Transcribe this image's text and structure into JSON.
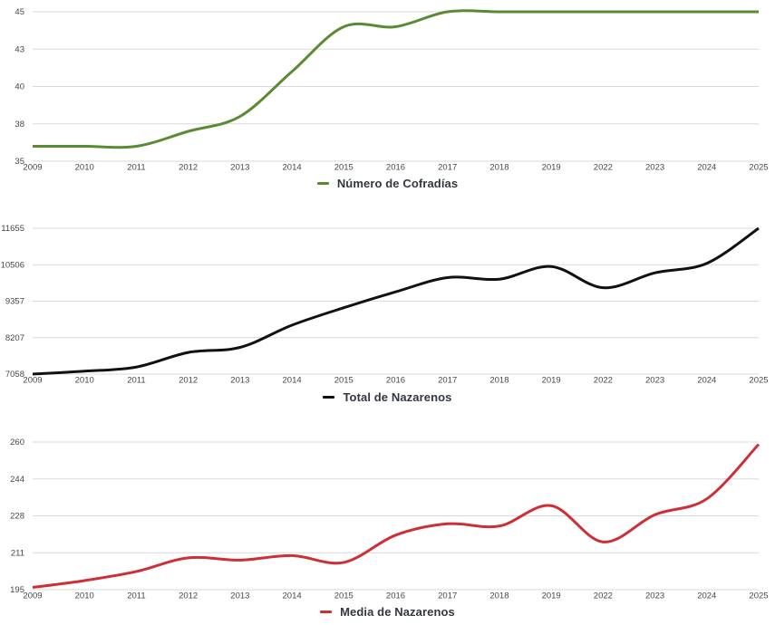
{
  "page": {
    "background": "#ffffff"
  },
  "colors": {
    "grid": "#d9d9d9",
    "tick_label": "#44474e",
    "legend_text": "#333740"
  },
  "chart_data": [
    {
      "type": "line",
      "title": "Número de Cofradías",
      "line_color": "#5a8b32",
      "smooth": true,
      "grid": true,
      "legend_position": "bottom",
      "categories": [
        "2009",
        "2010",
        "2011",
        "2012",
        "2013",
        "2014",
        "2015",
        "2016",
        "2017",
        "2018",
        "2019",
        "2022",
        "2023",
        "2024",
        "2025"
      ],
      "values": [
        36,
        36,
        36,
        37,
        38,
        41,
        44,
        44,
        45,
        45,
        45,
        45,
        45,
        45,
        45
      ],
      "ylim": [
        35,
        45
      ],
      "ytick_labels": [
        "45",
        "43",
        "40",
        "38",
        "35"
      ],
      "xlabel": "",
      "ylabel": ""
    },
    {
      "type": "line",
      "title": "Total de Nazarenos",
      "line_color": "#111111",
      "smooth": true,
      "grid": true,
      "legend_position": "bottom",
      "categories": [
        "2009",
        "2010",
        "2011",
        "2012",
        "2013",
        "2014",
        "2015",
        "2016",
        "2017",
        "2018",
        "2019",
        "2022",
        "2023",
        "2024",
        "2025"
      ],
      "values": [
        7058,
        7150,
        7280,
        7740,
        7900,
        8600,
        9150,
        9650,
        10100,
        10050,
        10450,
        9780,
        10250,
        10550,
        11655
      ],
      "ylim": [
        7058,
        11655
      ],
      "ytick_labels": [
        "11655",
        "10506",
        "9357",
        "8207",
        "7058"
      ],
      "xlabel": "",
      "ylabel": ""
    },
    {
      "type": "line",
      "title": "Media de Nazarenos",
      "line_color": "#ce2f36",
      "smooth": true,
      "grid": true,
      "legend_position": "bottom",
      "categories": [
        "2009",
        "2010",
        "2011",
        "2012",
        "2013",
        "2014",
        "2015",
        "2016",
        "2017",
        "2018",
        "2019",
        "2022",
        "2023",
        "2024",
        "2025"
      ],
      "values": [
        196,
        199,
        203,
        209,
        208,
        210,
        207,
        219,
        224,
        223,
        232,
        216,
        228,
        235,
        259
      ],
      "ylim": [
        195,
        260
      ],
      "ytick_labels": [
        "260",
        "244",
        "228",
        "211",
        "195"
      ],
      "xlabel": "",
      "ylabel": ""
    }
  ]
}
